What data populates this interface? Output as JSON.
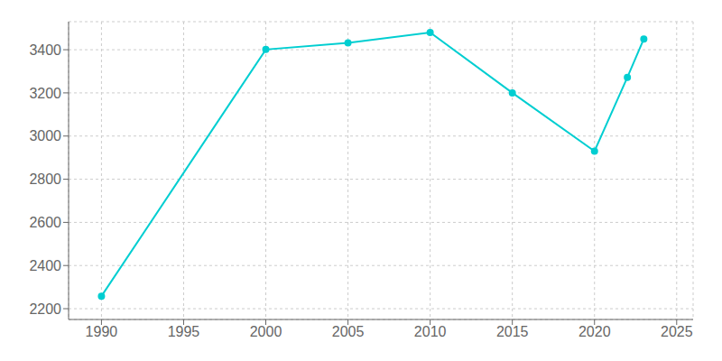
{
  "chart_data": {
    "type": "line",
    "x": [
      1990,
      2000,
      2005,
      2010,
      2015,
      2020,
      2022,
      2023
    ],
    "values": [
      2258,
      3401,
      3432,
      3480,
      3200,
      2930,
      3272,
      3450
    ],
    "color": "#00CED1",
    "marker": "circle",
    "xlim": [
      1988,
      2026
    ],
    "ylim": [
      2150,
      3530
    ],
    "xticks": [
      1990,
      1995,
      2000,
      2005,
      2010,
      2015,
      2020,
      2025
    ],
    "yticks": [
      2200,
      2400,
      2600,
      2800,
      3000,
      3200,
      3400
    ],
    "grid": true
  }
}
